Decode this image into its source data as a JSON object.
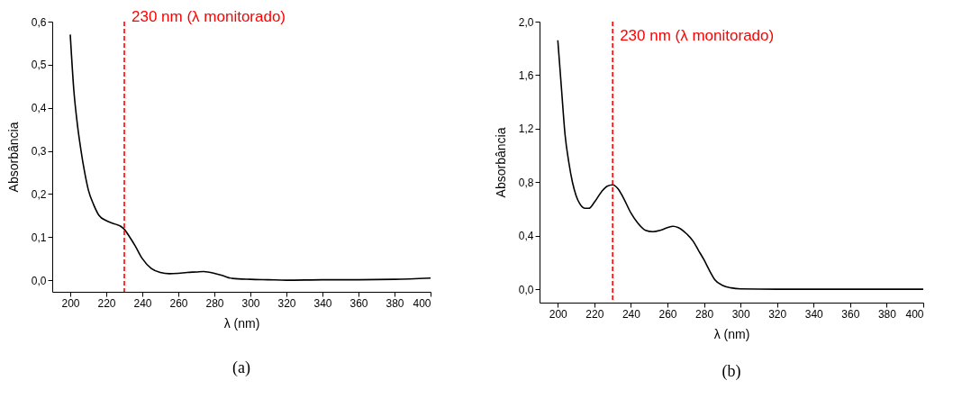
{
  "chart_data": [
    {
      "type": "line",
      "xlabel": "λ (nm)",
      "ylabel": "Absorbância",
      "annotations": [
        "(a)"
      ],
      "x": [
        200,
        202,
        204,
        206,
        208,
        210,
        213,
        216,
        220,
        225,
        228,
        230,
        233,
        236,
        240,
        245,
        250,
        255,
        260,
        265,
        270,
        274,
        280,
        285,
        290,
        300,
        310,
        320,
        340,
        360,
        380,
        400
      ],
      "series": [
        {
          "color": "#000000",
          "values": [
            0.57,
            0.44,
            0.36,
            0.3,
            0.25,
            0.21,
            0.175,
            0.15,
            0.138,
            0.13,
            0.125,
            0.118,
            0.1,
            0.08,
            0.05,
            0.027,
            0.018,
            0.015,
            0.016,
            0.018,
            0.019,
            0.02,
            0.016,
            0.01,
            0.004,
            0.002,
            0.001,
            0.0,
            0.001,
            0.001,
            0.002,
            0.005
          ]
        }
      ],
      "xlim": [
        190,
        400
      ],
      "xticks": [
        200,
        220,
        240,
        260,
        280,
        300,
        320,
        340,
        360,
        380,
        400
      ],
      "ylim": [
        -0.027,
        0.6
      ],
      "yticks": [
        {
          "value": 0,
          "label": "0,0"
        },
        {
          "value": 0.1,
          "label": "0,1"
        },
        {
          "value": 0.2,
          "label": "0,2"
        },
        {
          "value": 0.3,
          "label": "0,3"
        },
        {
          "value": 0.4,
          "label": "0,4"
        },
        {
          "value": 0.5,
          "label": "0,5"
        },
        {
          "value": 0.6,
          "label": "0,6"
        }
      ],
      "ref_lines": [
        {
          "axis": "x",
          "value": 230,
          "label": "230 nm (λ monitorado)",
          "color": "#ff0000",
          "line_style": "dashed"
        }
      ]
    },
    {
      "type": "line",
      "xlabel": "λ (nm)",
      "ylabel": "Absorbância",
      "annotations": [
        "(b)"
      ],
      "x": [
        200,
        202,
        204,
        206,
        208,
        210,
        212,
        215,
        217,
        220,
        224,
        227,
        230,
        233,
        236,
        240,
        244,
        248,
        252,
        256,
        260,
        263,
        266,
        270,
        274,
        277,
        280,
        283,
        286,
        290,
        295,
        300,
        320,
        360,
        400
      ],
      "series": [
        {
          "color": "#000000",
          "values": [
            1.86,
            1.5,
            1.15,
            0.95,
            0.8,
            0.7,
            0.64,
            0.605,
            0.605,
            0.65,
            0.73,
            0.77,
            0.78,
            0.75,
            0.68,
            0.57,
            0.49,
            0.44,
            0.43,
            0.44,
            0.46,
            0.47,
            0.46,
            0.42,
            0.36,
            0.29,
            0.22,
            0.14,
            0.07,
            0.03,
            0.01,
            0.003,
            0.0,
            0.0,
            0.0
          ]
        }
      ],
      "xlim": [
        190,
        400
      ],
      "xticks": [
        200,
        220,
        240,
        260,
        280,
        300,
        320,
        340,
        360,
        380,
        400
      ],
      "ylim": [
        -0.1,
        2.0
      ],
      "yticks": [
        {
          "value": 0,
          "label": "0,0"
        },
        {
          "value": 0.4,
          "label": "0,4"
        },
        {
          "value": 0.8,
          "label": "0,8"
        },
        {
          "value": 1.2,
          "label": "1,2"
        },
        {
          "value": 1.6,
          "label": "1,6"
        },
        {
          "value": 2.0,
          "label": "2,0"
        }
      ],
      "ref_lines": [
        {
          "axis": "x",
          "value": 230,
          "label": "230 nm (λ monitorado)",
          "color": "#ff0000",
          "line_style": "dashed"
        }
      ]
    }
  ]
}
